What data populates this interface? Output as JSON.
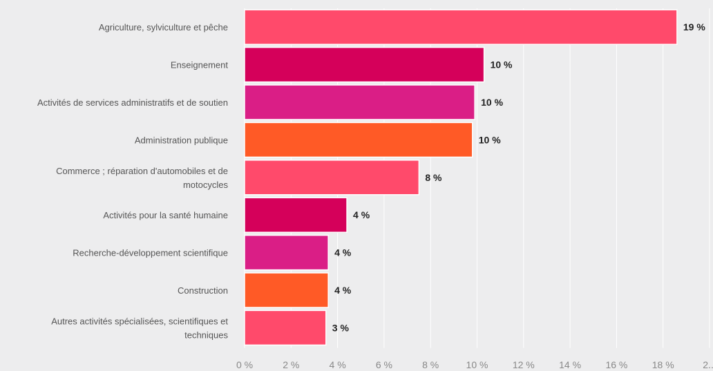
{
  "chart_data": {
    "type": "bar",
    "orientation": "horizontal",
    "categories": [
      "Agriculture, sylviculture et pêche",
      "Enseignement",
      "Activités de services administratifs et de soutien",
      "Administration publique",
      "Commerce ; réparation d'automobiles et de motocycles",
      "Activités pour la santé humaine",
      "Recherche-développement scientifique",
      "Construction",
      "Autres activités spécialisées, scientifiques et techniques"
    ],
    "category_lines": [
      [
        "Agriculture, sylviculture et pêche"
      ],
      [
        "Enseignement"
      ],
      [
        "Activités de services administratifs et de soutien"
      ],
      [
        "Administration publique"
      ],
      [
        "Commerce ; réparation d'automobiles et de",
        "motocycles"
      ],
      [
        "Activités pour la santé humaine"
      ],
      [
        "Recherche-développement scientifique"
      ],
      [
        "Construction"
      ],
      [
        "Autres activités spécialisées, scientifiques et",
        "techniques"
      ]
    ],
    "values": [
      18.6,
      10.3,
      9.9,
      9.8,
      7.5,
      4.4,
      3.6,
      3.6,
      3.5
    ],
    "value_labels": [
      "19 %",
      "10 %",
      "10 %",
      "10 %",
      "8 %",
      "4 %",
      "4 %",
      "4 %",
      "3 %"
    ],
    "bar_colors": [
      "#ff4a6b",
      "#d5005a",
      "#da1e86",
      "#ff5a26",
      "#ff4a6b",
      "#d5005a",
      "#da1e86",
      "#ff5a26",
      "#ff4a6b"
    ],
    "xlim": [
      0,
      20
    ],
    "xticks": [
      "0 %",
      "2 %",
      "4 %",
      "6 %",
      "8 %",
      "10 %",
      "12 %",
      "14 %",
      "16 %",
      "18 %",
      "2..."
    ],
    "grid": true,
    "title": "",
    "xlabel": "",
    "ylabel": ""
  }
}
